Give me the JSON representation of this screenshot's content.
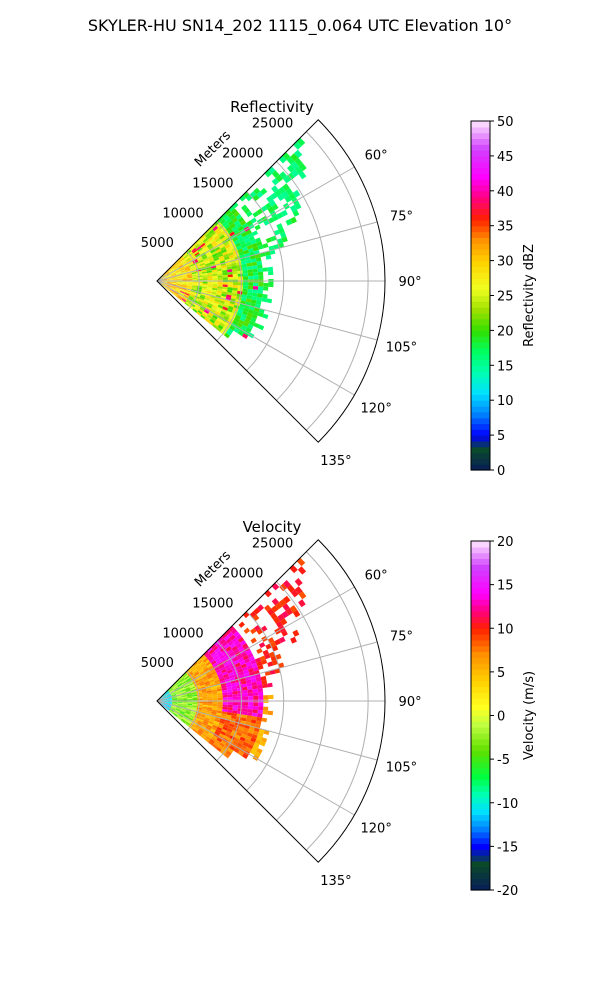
{
  "figure": {
    "title": "SKYLER-HU  SN14_202  1115_0.064 UTC Elevation 10°"
  },
  "chart_data": [
    {
      "type": "heatmap",
      "projection": "polar-sector",
      "title": "Reflectivity",
      "radial_label": "Meters",
      "r_ticks": [
        5000,
        10000,
        15000,
        20000,
        25000
      ],
      "r_range": [
        0,
        27000
      ],
      "theta_range_deg": [
        45,
        135
      ],
      "theta_ticks_deg": [
        60,
        75,
        90,
        105,
        120,
        135
      ],
      "theta_tick_labels": [
        "60°",
        "75°",
        "90°",
        "105°",
        "120°",
        "135°"
      ],
      "grid": true,
      "data_extent": {
        "near_r": 0,
        "far_r_core": 14000,
        "far_r_sparse": 24000
      },
      "colorbar": {
        "label": "Reflectivity dBZ",
        "range": [
          0,
          50
        ],
        "ticks": [
          0,
          5,
          10,
          15,
          20,
          25,
          30,
          35,
          40,
          45,
          50
        ],
        "stops": [
          [
            0,
            "#081d58"
          ],
          [
            3,
            "#0a4a2a"
          ],
          [
            5,
            "#0000ff"
          ],
          [
            8,
            "#0080ff"
          ],
          [
            11,
            "#00e0ff"
          ],
          [
            14,
            "#00ffb0"
          ],
          [
            17,
            "#00ff60"
          ],
          [
            20,
            "#33e000"
          ],
          [
            23,
            "#a0e000"
          ],
          [
            26,
            "#f0ff20"
          ],
          [
            30,
            "#ffd000"
          ],
          [
            33,
            "#ff9000"
          ],
          [
            36,
            "#ff2000"
          ],
          [
            39,
            "#ff0080"
          ],
          [
            42,
            "#ff00ff"
          ],
          [
            46,
            "#d040ff"
          ],
          [
            50,
            "#ffe8ff"
          ]
        ]
      },
      "field_levels": {
        "near": 29,
        "core": 25,
        "edge": 18,
        "sparse": 17
      }
    },
    {
      "type": "heatmap",
      "projection": "polar-sector",
      "title": "Velocity",
      "radial_label": "Meters",
      "r_ticks": [
        5000,
        10000,
        15000,
        20000,
        25000
      ],
      "r_range": [
        0,
        27000
      ],
      "theta_range_deg": [
        45,
        135
      ],
      "theta_ticks_deg": [
        60,
        75,
        90,
        105,
        120,
        135
      ],
      "theta_tick_labels": [
        "60°",
        "75°",
        "90°",
        "105°",
        "120°",
        "135°"
      ],
      "grid": true,
      "data_extent": {
        "near_r": 0,
        "far_r_core": 14000,
        "far_r_sparse": 24000
      },
      "colorbar": {
        "label": "Velocity (m/s)",
        "range": [
          -20,
          20
        ],
        "ticks": [
          -20,
          -15,
          -10,
          -5,
          0,
          5,
          10,
          15,
          20
        ],
        "stops": [
          [
            -20,
            "#081d58"
          ],
          [
            -17,
            "#0a4a2a"
          ],
          [
            -15,
            "#0000ff"
          ],
          [
            -13,
            "#0080ff"
          ],
          [
            -11,
            "#00e0ff"
          ],
          [
            -9,
            "#00ffb0"
          ],
          [
            -7,
            "#00ff40"
          ],
          [
            -4,
            "#60e000"
          ],
          [
            -1,
            "#c0ff40"
          ],
          [
            1,
            "#ffff20"
          ],
          [
            4,
            "#ffd000"
          ],
          [
            7,
            "#ff9000"
          ],
          [
            10,
            "#ff2000"
          ],
          [
            12,
            "#ff0080"
          ],
          [
            14,
            "#ff00ff"
          ],
          [
            17,
            "#d040ff"
          ],
          [
            20,
            "#ffe8ff"
          ]
        ]
      },
      "field_levels": {
        "near": -11,
        "mid": -3,
        "outer": 6,
        "core": 13,
        "sparse": 10
      }
    }
  ]
}
